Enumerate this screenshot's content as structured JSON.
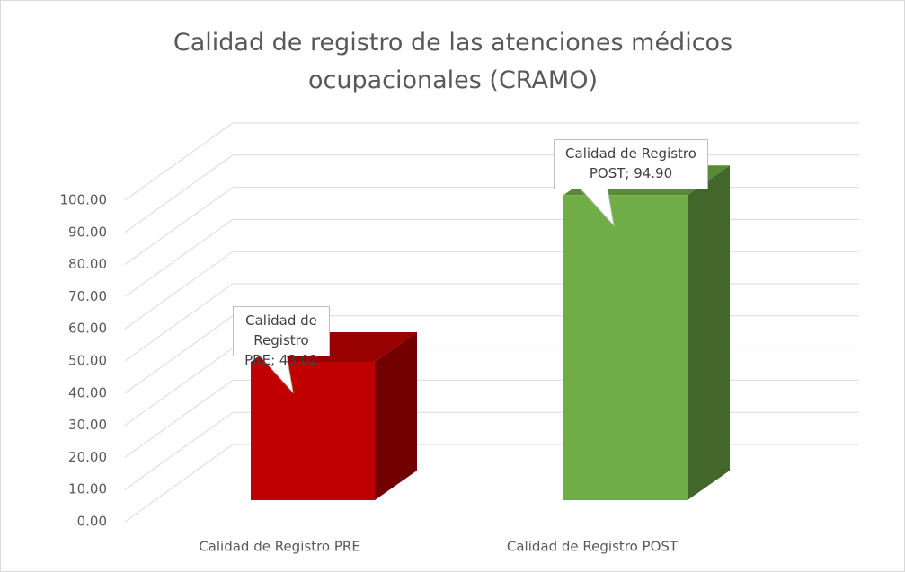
{
  "chart_data": {
    "type": "bar3d",
    "title": "Calidad de registro de las atenciones médicos ocupacionales (CRAMO)",
    "categories": [
      "Calidad de Registro PRE",
      "Calidad de Registro POST"
    ],
    "values": [
      43.02,
      94.9
    ],
    "value_labels": [
      "Calidad de Registro PRE; 43.02",
      "Calidad de Registro POST; 94.90"
    ],
    "colors": [
      "#c00000",
      "#70ad47"
    ],
    "ylim": [
      0,
      100
    ],
    "yticks": [
      {
        "value": 0,
        "label": "0.00"
      },
      {
        "value": 10,
        "label": "10.00"
      },
      {
        "value": 20,
        "label": "20.00"
      },
      {
        "value": 30,
        "label": "30.00"
      },
      {
        "value": 40,
        "label": "40.00"
      },
      {
        "value": 50,
        "label": "50.00"
      },
      {
        "value": 60,
        "label": "60.00"
      },
      {
        "value": 70,
        "label": "70.00"
      },
      {
        "value": 80,
        "label": "80.00"
      },
      {
        "value": 90,
        "label": "90.00"
      },
      {
        "value": 100,
        "label": "100.00"
      }
    ],
    "grid": true
  }
}
